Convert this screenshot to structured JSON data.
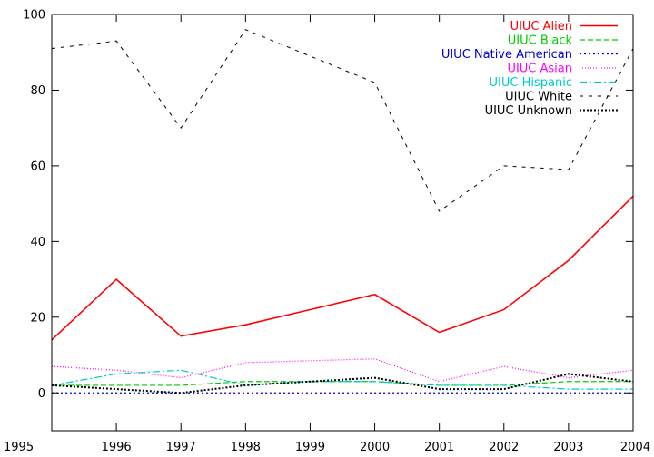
{
  "chart_data": {
    "type": "line",
    "title": "",
    "xlabel": "",
    "ylabel": "",
    "x": [
      1995,
      1996,
      1997,
      1998,
      1999,
      2000,
      2001,
      2002,
      2003,
      2004
    ],
    "xlim": [
      1995,
      2004
    ],
    "ylim": [
      -10,
      100
    ],
    "x_ticks": [
      "1995",
      "1996",
      "1997",
      "1998",
      "1999",
      "2000",
      "2001",
      "2002",
      "2003",
      "2004"
    ],
    "y_ticks": [
      0,
      20,
      40,
      60,
      80,
      100
    ],
    "y_tick_labels": [
      "0",
      "20",
      "40",
      "60",
      "80",
      "100"
    ],
    "grid": false,
    "legend_position": "top-right",
    "series": [
      {
        "name": "UIUC Alien",
        "color": "#ff0000",
        "dash": "solid",
        "values": [
          14,
          30,
          15,
          18,
          22,
          26,
          16,
          22,
          35,
          52
        ]
      },
      {
        "name": "UIUC Black",
        "color": "#00cc00",
        "dash": "dashed",
        "values": [
          2,
          2,
          2,
          3,
          3,
          3,
          2,
          2,
          3,
          3
        ]
      },
      {
        "name": "UIUC Native American",
        "color": "#0000cc",
        "dash": "dotted",
        "values": [
          0,
          0,
          0,
          0,
          0,
          0,
          0,
          0,
          0,
          0
        ]
      },
      {
        "name": "UIUC Asian",
        "color": "#ff00ff",
        "dash": "fine-dotted",
        "values": [
          7,
          6,
          4,
          8,
          8.5,
          9,
          3,
          7,
          4,
          6
        ]
      },
      {
        "name": "UIUC Hispanic",
        "color": "#00cccc",
        "dash": "dash-dot",
        "values": [
          2,
          5,
          6,
          2,
          3,
          3,
          2,
          2,
          1,
          1
        ]
      },
      {
        "name": "UIUC White",
        "color": "#000000",
        "dash": "long-dashed",
        "values": [
          91,
          93,
          70,
          96,
          89,
          82,
          48,
          60,
          59,
          91
        ]
      },
      {
        "name": "UIUC Unknown",
        "color": "#000000",
        "dash": "dense-dotted",
        "values": [
          2,
          1,
          0,
          2,
          3,
          4,
          1,
          1,
          5,
          3
        ]
      }
    ]
  }
}
